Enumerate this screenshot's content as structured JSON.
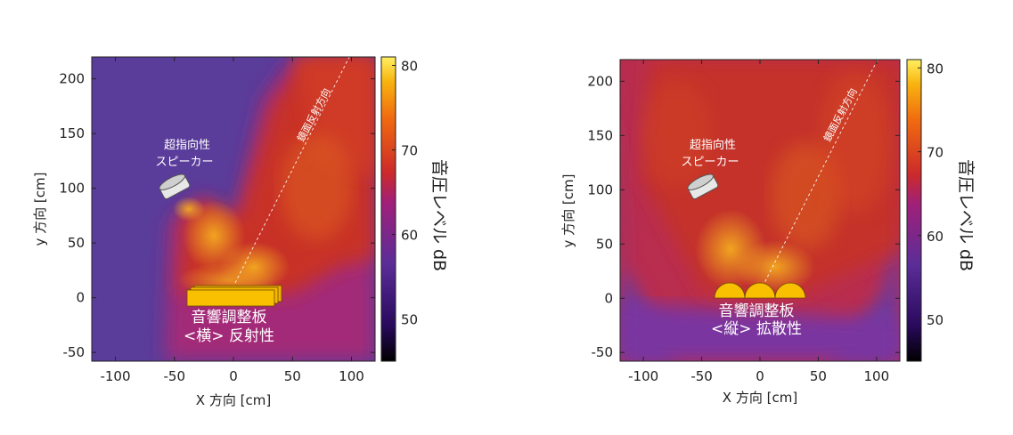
{
  "chart_data": [
    {
      "type": "heatmap",
      "id": "left",
      "xlabel": "X 方向 [cm]",
      "ylabel": "y 方向 [cm]",
      "xlim": [
        -120,
        120
      ],
      "ylim": [
        -58,
        220
      ],
      "xticks": [
        "-100",
        "-50",
        "0",
        "50",
        "100"
      ],
      "yticks": [
        "-50",
        "0",
        "50",
        "100",
        "150",
        "200"
      ],
      "colorbar": {
        "label": "音圧レベル dB",
        "range": [
          45,
          81
        ],
        "ticks": [
          "50",
          "60",
          "70",
          "80"
        ]
      },
      "speaker_label": [
        "超指向性",
        "スピーカー"
      ],
      "mirror_label": "鏡面反射方向",
      "panel_label": [
        "音響調整板",
        "<横> 反射性"
      ],
      "panel_type": "flat"
    },
    {
      "type": "heatmap",
      "id": "right",
      "xlabel": "X 方向 [cm]",
      "ylabel": "y 方向 [cm]",
      "xlim": [
        -120,
        120
      ],
      "ylim": [
        -58,
        220
      ],
      "xticks": [
        "-100",
        "-50",
        "0",
        "50",
        "100"
      ],
      "yticks": [
        "-50",
        "0",
        "50",
        "100",
        "150",
        "200"
      ],
      "colorbar": {
        "label": "音圧レベル dB",
        "range": [
          45,
          81
        ],
        "ticks": [
          "50",
          "60",
          "70",
          "80"
        ]
      },
      "speaker_label": [
        "超指向性",
        "スピーカー"
      ],
      "mirror_label": "鏡面反射方向",
      "panel_label": [
        "音響調整板",
        "<縦> 拡散性"
      ],
      "panel_type": "diffuse"
    }
  ]
}
